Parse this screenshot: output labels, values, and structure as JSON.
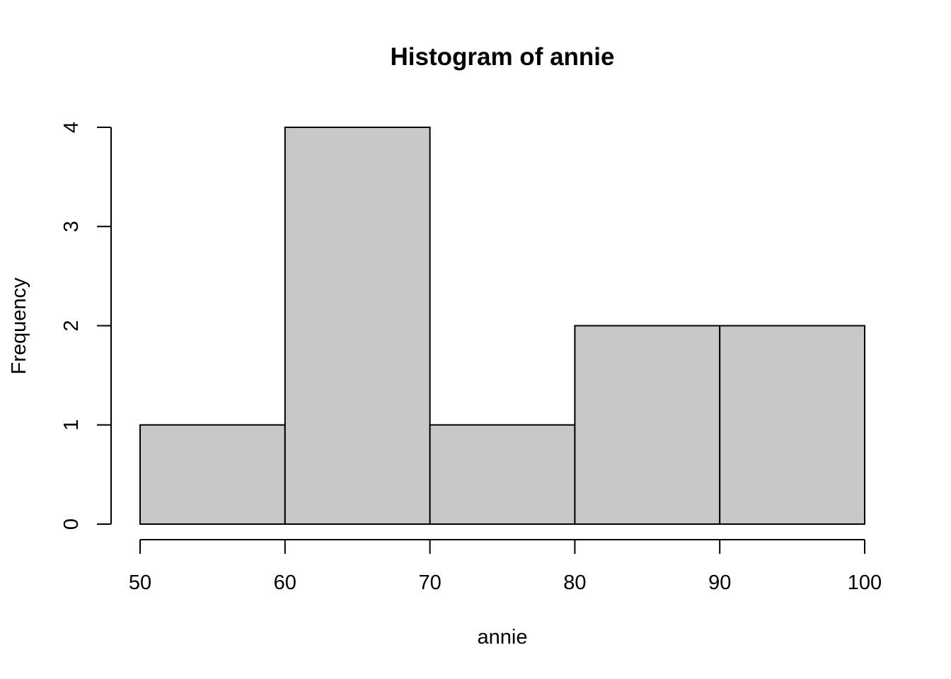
{
  "chart_data": {
    "type": "bar",
    "subtype": "histogram",
    "title": "Histogram of annie",
    "xlabel": "annie",
    "ylabel": "Frequency",
    "bins": [
      {
        "from": 50,
        "to": 60,
        "count": 1
      },
      {
        "from": 60,
        "to": 70,
        "count": 4
      },
      {
        "from": 70,
        "to": 80,
        "count": 1
      },
      {
        "from": 80,
        "to": 90,
        "count": 2
      },
      {
        "from": 90,
        "to": 100,
        "count": 2
      }
    ],
    "x_ticks": [
      50,
      60,
      70,
      80,
      90,
      100
    ],
    "y_ticks": [
      0,
      1,
      2,
      3,
      4
    ],
    "xlim": [
      50,
      100
    ],
    "ylim": [
      0,
      4
    ],
    "bar_color": "#c8c8c8",
    "grid": false,
    "legend": "none"
  }
}
